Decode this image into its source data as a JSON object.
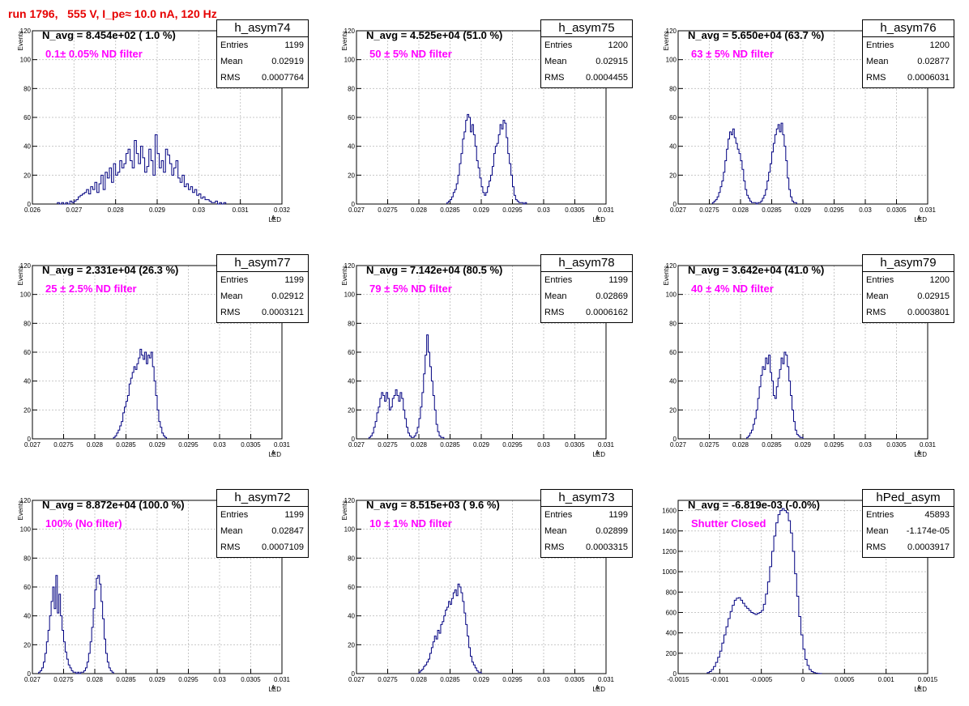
{
  "run_title": "run 1796,   555 V, I_pe≈ 10.0 nA, 120 Hz",
  "chart_data": [
    {
      "type": "histogram",
      "name": "h_asym74",
      "n_avg": "N_avg = 8.454e+02 ( 1.0 %)",
      "filter": "0.1± 0.05% ND filter",
      "stats": {
        "entries": "1199",
        "mean": "0.02919",
        "rms": "0.0007764"
      },
      "xlim": [
        0.026,
        0.032
      ],
      "ylim": [
        0,
        120
      ],
      "xticks": [
        "0.026",
        "0.027",
        "0.028",
        "0.029",
        "0.03",
        "0.031",
        "0.032"
      ],
      "yticks": [
        "0",
        "20",
        "40",
        "60",
        "80",
        "100",
        "120"
      ],
      "xlabel": "A",
      "xlabel_sub": "LED",
      "ylabel": "Events",
      "bins": {
        "start": 0.0266,
        "width": 5e-05,
        "counts": [
          1,
          0,
          1,
          0,
          1,
          0,
          2,
          1,
          2,
          3,
          5,
          6,
          7,
          8,
          10,
          7,
          12,
          10,
          15,
          8,
          14,
          20,
          10,
          22,
          18,
          25,
          15,
          28,
          20,
          22,
          30,
          25,
          28,
          35,
          38,
          30,
          25,
          44,
          35,
          28,
          40,
          32,
          22,
          26,
          38,
          30,
          20,
          48,
          35,
          25,
          30,
          22,
          38,
          34,
          28,
          20,
          25,
          30,
          18,
          15,
          20,
          12,
          14,
          10,
          12,
          8,
          10,
          6,
          7,
          4,
          5,
          3,
          3,
          2,
          1,
          1,
          2,
          0,
          1,
          0,
          1
        ]
      }
    },
    {
      "type": "histogram",
      "name": "h_asym75",
      "n_avg": "N_avg = 4.525e+04 (51.0 %)",
      "filter": "50 ± 5% ND filter",
      "stats": {
        "entries": "1200",
        "mean": "0.02915",
        "rms": "0.0004455"
      },
      "xlim": [
        0.027,
        0.031
      ],
      "ylim": [
        0,
        120
      ],
      "xticks": [
        "0.027",
        "0.0275",
        "0.028",
        "0.0285",
        "0.029",
        "0.0295",
        "0.03",
        "0.0305",
        "0.031"
      ],
      "yticks": [
        "0",
        "20",
        "40",
        "60",
        "80",
        "100",
        "120"
      ],
      "xlabel": "A",
      "xlabel_sub": "LED",
      "ylabel": "Events",
      "bins": {
        "start": 0.02845,
        "width": 2.5e-05,
        "counts": [
          1,
          2,
          3,
          5,
          8,
          10,
          14,
          20,
          28,
          35,
          45,
          50,
          58,
          62,
          60,
          50,
          55,
          48,
          40,
          30,
          25,
          18,
          12,
          8,
          6,
          8,
          12,
          16,
          20,
          26,
          35,
          40,
          42,
          48,
          55,
          52,
          58,
          56,
          46,
          35,
          28,
          20,
          12,
          6,
          3,
          2,
          1,
          1,
          1,
          0,
          1
        ]
      }
    },
    {
      "type": "histogram",
      "name": "h_asym76",
      "n_avg": "N_avg = 5.650e+04 (63.7 %)",
      "filter": "63 ± 5% ND filter",
      "stats": {
        "entries": "1200",
        "mean": "0.02877",
        "rms": "0.0006031"
      },
      "xlim": [
        0.027,
        0.031
      ],
      "ylim": [
        0,
        120
      ],
      "xticks": [
        "0.027",
        "0.0275",
        "0.028",
        "0.0285",
        "0.029",
        "0.0295",
        "0.03",
        "0.0305",
        "0.031"
      ],
      "yticks": [
        "0",
        "20",
        "40",
        "60",
        "80",
        "100",
        "120"
      ],
      "xlabel": "A",
      "xlabel_sub": "LED",
      "ylabel": "Events",
      "bins": {
        "start": 0.02755,
        "width": 2.5e-05,
        "counts": [
          1,
          2,
          3,
          5,
          8,
          12,
          16,
          22,
          30,
          38,
          45,
          50,
          48,
          52,
          46,
          42,
          38,
          35,
          30,
          24,
          16,
          10,
          6,
          4,
          2,
          1,
          1,
          1,
          0,
          1,
          1,
          2,
          4,
          6,
          10,
          16,
          22,
          28,
          36,
          42,
          48,
          52,
          55,
          50,
          56,
          48,
          40,
          30,
          18,
          10,
          5,
          2,
          1,
          1
        ]
      }
    },
    {
      "type": "histogram",
      "name": "h_asym77",
      "n_avg": "N_avg = 2.331e+04 (26.3 %)",
      "filter": "25 ± 2.5% ND filter",
      "stats": {
        "entries": "1199",
        "mean": "0.02912",
        "rms": "0.0003121"
      },
      "xlim": [
        0.027,
        0.031
      ],
      "ylim": [
        0,
        120
      ],
      "xticks": [
        "0.027",
        "0.0275",
        "0.028",
        "0.0285",
        "0.029",
        "0.0295",
        "0.03",
        "0.0305",
        "0.031"
      ],
      "yticks": [
        "0",
        "20",
        "40",
        "60",
        "80",
        "100",
        "120"
      ],
      "xlabel": "A",
      "xlabel_sub": "LED",
      "ylabel": "Events",
      "bins": {
        "start": 0.0283,
        "width": 2.5e-05,
        "counts": [
          1,
          2,
          4,
          6,
          9,
          12,
          18,
          22,
          26,
          30,
          38,
          42,
          46,
          50,
          48,
          52,
          56,
          62,
          58,
          55,
          60,
          52,
          58,
          56,
          60,
          50,
          40,
          30,
          20,
          12,
          8,
          4,
          2,
          1
        ]
      }
    },
    {
      "type": "histogram",
      "name": "h_asym78",
      "n_avg": "N_avg = 7.142e+04 (80.5 %)",
      "filter": "79 ± 5% ND filter",
      "stats": {
        "entries": "1199",
        "mean": "0.02869",
        "rms": "0.0006162"
      },
      "xlim": [
        0.027,
        0.031
      ],
      "ylim": [
        0,
        120
      ],
      "xticks": [
        "0.027",
        "0.0275",
        "0.028",
        "0.0285",
        "0.029",
        "0.0295",
        "0.03",
        "0.0305",
        "0.031"
      ],
      "yticks": [
        "0",
        "20",
        "40",
        "60",
        "80",
        "100",
        "120"
      ],
      "xlabel": "A",
      "xlabel_sub": "LED",
      "ylabel": "Events",
      "bins": {
        "start": 0.0272,
        "width": 2.5e-05,
        "counts": [
          1,
          2,
          4,
          8,
          12,
          18,
          22,
          28,
          32,
          30,
          26,
          32,
          28,
          20,
          22,
          28,
          30,
          34,
          30,
          26,
          32,
          28,
          20,
          14,
          8,
          4,
          2,
          1,
          1,
          2,
          4,
          8,
          14,
          22,
          32,
          45,
          58,
          72,
          60,
          50,
          40,
          30,
          20,
          10,
          5,
          2,
          1,
          1
        ]
      }
    },
    {
      "type": "histogram",
      "name": "h_asym79",
      "n_avg": "N_avg = 3.642e+04 (41.0 %)",
      "filter": "40 ± 4% ND filter",
      "stats": {
        "entries": "1200",
        "mean": "0.02915",
        "rms": "0.0003801"
      },
      "xlim": [
        0.027,
        0.031
      ],
      "ylim": [
        0,
        120
      ],
      "xticks": [
        "0.027",
        "0.0275",
        "0.028",
        "0.0285",
        "0.029",
        "0.0295",
        "0.03",
        "0.0305",
        "0.031"
      ],
      "yticks": [
        "0",
        "20",
        "40",
        "60",
        "80",
        "100",
        "120"
      ],
      "xlabel": "A",
      "xlabel_sub": "LED",
      "ylabel": "Events",
      "bins": {
        "start": 0.0281,
        "width": 2.5e-05,
        "counts": [
          1,
          2,
          4,
          6,
          10,
          14,
          20,
          28,
          36,
          44,
          50,
          48,
          56,
          52,
          58,
          46,
          40,
          30,
          28,
          36,
          42,
          48,
          56,
          52,
          60,
          58,
          50,
          40,
          30,
          20,
          12,
          6,
          3,
          2,
          1,
          1
        ]
      }
    },
    {
      "type": "histogram",
      "name": "h_asym72",
      "n_avg": "N_avg = 8.872e+04 (100.0 %)",
      "filter": "100% (No filter)",
      "stats": {
        "entries": "1199",
        "mean": "0.02847",
        "rms": "0.0007109"
      },
      "xlim": [
        0.027,
        0.031
      ],
      "ylim": [
        0,
        120
      ],
      "xticks": [
        "0.027",
        "0.0275",
        "0.028",
        "0.0285",
        "0.029",
        "0.0295",
        "0.03",
        "0.0305",
        "0.031"
      ],
      "yticks": [
        "0",
        "20",
        "40",
        "60",
        "80",
        "100",
        "120"
      ],
      "xlabel": "A",
      "xlabel_sub": "LED",
      "ylabel": "Events",
      "bins": {
        "start": 0.0271,
        "width": 2.5e-05,
        "counts": [
          1,
          2,
          4,
          8,
          14,
          22,
          30,
          40,
          50,
          60,
          45,
          68,
          42,
          55,
          40,
          30,
          22,
          15,
          10,
          6,
          4,
          2,
          1,
          1,
          0,
          1,
          0,
          1,
          1,
          2,
          4,
          8,
          14,
          22,
          32,
          45,
          58,
          66,
          68,
          62,
          50,
          38,
          24,
          14,
          8,
          4,
          2,
          1
        ]
      }
    },
    {
      "type": "histogram",
      "name": "h_asym73",
      "n_avg": "N_avg = 8.515e+03 ( 9.6 %)",
      "filter": "10 ± 1% ND filter",
      "stats": {
        "entries": "1199",
        "mean": "0.02899",
        "rms": "0.0003315"
      },
      "xlim": [
        0.027,
        0.031
      ],
      "ylim": [
        0,
        120
      ],
      "xticks": [
        "0.027",
        "0.0275",
        "0.028",
        "0.0285",
        "0.029",
        "0.0295",
        "0.03",
        "0.0305",
        "0.031"
      ],
      "yticks": [
        "0",
        "20",
        "40",
        "60",
        "80",
        "100",
        "120"
      ],
      "xlabel": "A",
      "xlabel_sub": "LED",
      "ylabel": "Events",
      "bins": {
        "start": 0.028,
        "width": 2.5e-05,
        "counts": [
          1,
          2,
          3,
          5,
          6,
          8,
          10,
          14,
          18,
          22,
          26,
          24,
          30,
          28,
          34,
          36,
          40,
          44,
          46,
          50,
          48,
          52,
          56,
          58,
          54,
          62,
          60,
          56,
          50,
          42,
          34,
          26,
          18,
          12,
          8,
          6,
          4,
          2,
          1,
          1
        ]
      }
    },
    {
      "type": "histogram",
      "name": "hPed_asym",
      "n_avg": "N_avg = -6.819e-03 (-0.0%)",
      "filter": "Shutter Closed",
      "stats": {
        "entries": "45893",
        "mean": "-1.174e-05",
        "rms": "0.0003917"
      },
      "xlim": [
        -0.0015,
        0.0015
      ],
      "ylim": [
        0,
        1700
      ],
      "xticks": [
        "-0.0015",
        "-0.001",
        "-0.0005",
        "0",
        "0.0005",
        "0.001",
        "0.0015"
      ],
      "yticks": [
        "0",
        "200",
        "400",
        "600",
        "800",
        "1000",
        "1200",
        "1400",
        "1600"
      ],
      "xlabel": "A",
      "xlabel_sub": "LED",
      "ylabel": "",
      "bins": {
        "start": -0.00115,
        "width": 2.5e-05,
        "counts": [
          10,
          20,
          40,
          70,
          110,
          160,
          220,
          300,
          380,
          460,
          540,
          610,
          670,
          720,
          740,
          745,
          720,
          690,
          660,
          640,
          620,
          600,
          590,
          580,
          590,
          600,
          620,
          680,
          780,
          900,
          1050,
          1200,
          1350,
          1480,
          1560,
          1600,
          1620,
          1600,
          1580,
          1500,
          1380,
          1200,
          980,
          760,
          560,
          380,
          240,
          140,
          80,
          40,
          20,
          10,
          5,
          2,
          1
        ]
      }
    }
  ]
}
